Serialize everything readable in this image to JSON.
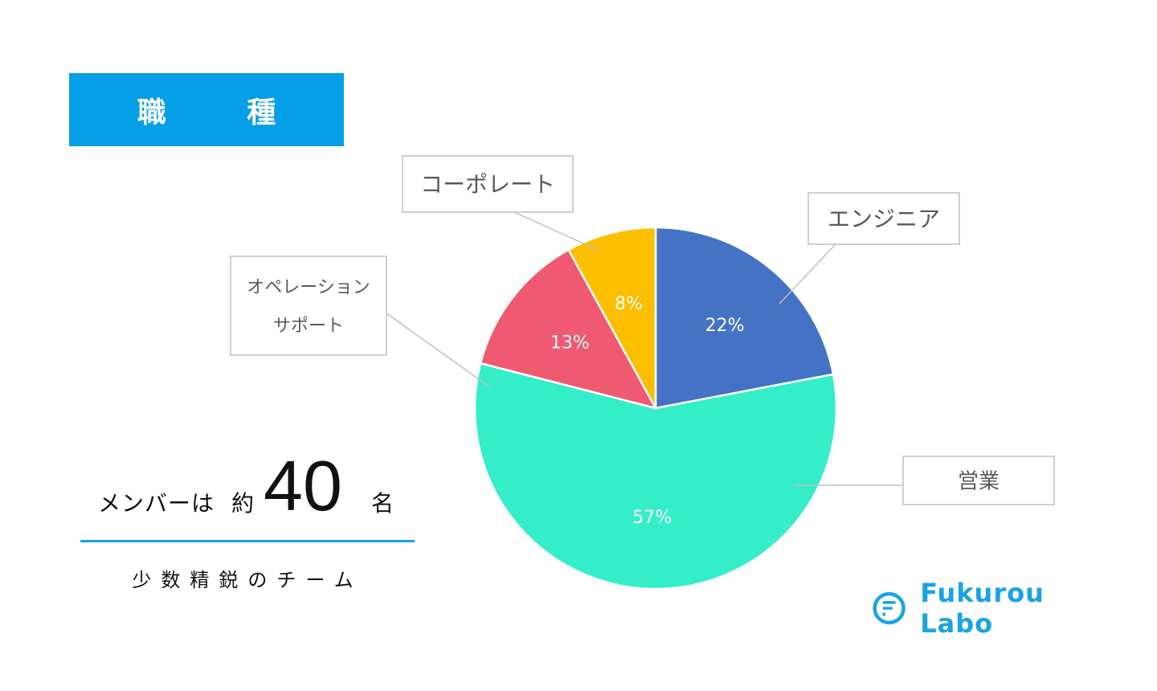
{
  "banner": {
    "title": "職 種",
    "color": "#049fe6"
  },
  "members": {
    "prefix": "メンバーは",
    "about": "約",
    "count": "40",
    "suffix": "名",
    "tagline": "少数精鋭のチーム",
    "underline_color": "#1aa3e6"
  },
  "logo": {
    "text": "Fukurou Labo",
    "icon": "fukurou-labo-logo-icon",
    "color": "#1aa3e6"
  },
  "chart_data": {
    "type": "pie",
    "title": "職 種",
    "slices": [
      {
        "label": "エンジニア",
        "value": 22,
        "display": "22%",
        "color": "#4472c4"
      },
      {
        "label": "営業",
        "value": 57,
        "display": "57%",
        "color": "#33eec8"
      },
      {
        "label": "オペレーション\nサポート",
        "value": 13,
        "display": "13%",
        "color": "#ef5a71"
      },
      {
        "label": "コーポレート",
        "value": 8,
        "display": "8%",
        "color": "#fcbf00"
      }
    ],
    "start_angle_deg": 0,
    "direction": "clockwise",
    "data_labels": "inside",
    "category_labels": "callouts"
  }
}
